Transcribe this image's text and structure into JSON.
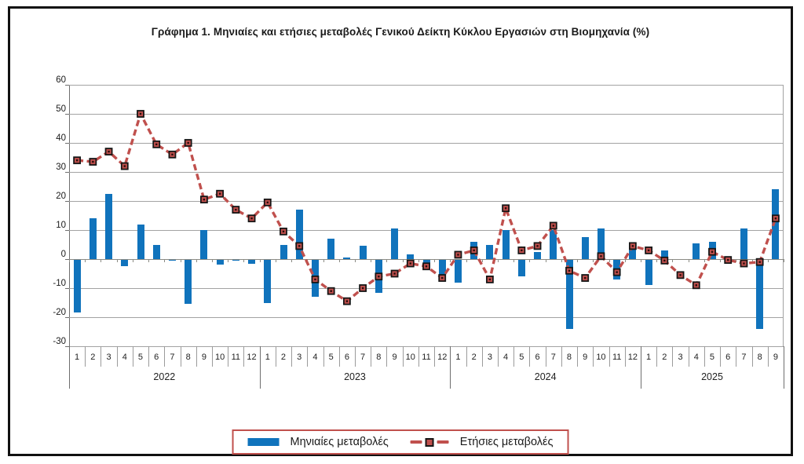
{
  "title": "Γράφημα 1. Μηνιαίες και ετήσιες μεταβολές  Γενικού Δείκτη Κύκλου Εργασιών στη Βιομηχανία (%)",
  "legend": {
    "bar_label": "Μηνιαίες μεταβολές",
    "line_label": "Ετήσιες μεταβολές"
  },
  "colors": {
    "bar": "#1073bc",
    "line": "#c0504d",
    "marker_border": "#161616",
    "legend_border": "#c0504d",
    "gridline": "#a3a3a3"
  },
  "chart_data": {
    "type": "bar+line",
    "title": "Γράφημα 1. Μηνιαίες και ετήσιες μεταβολές  Γενικού Δείκτη Κύκλου Εργασιών στη Βιομηχανία (%)",
    "ylim": [
      -30,
      60
    ],
    "y_ticks": [
      60,
      50,
      40,
      30,
      20,
      10,
      0,
      -10,
      -20,
      -30
    ],
    "grid": true,
    "legend_position": "bottom",
    "years": [
      {
        "label": "2022",
        "months": [
          "1",
          "2",
          "3",
          "4",
          "5",
          "6",
          "7",
          "8",
          "9",
          "10",
          "11",
          "12"
        ]
      },
      {
        "label": "2023",
        "months": [
          "1",
          "2",
          "3",
          "4",
          "5",
          "6",
          "7",
          "8",
          "9",
          "10",
          "11",
          "12"
        ]
      },
      {
        "label": "2024",
        "months": [
          "1",
          "2",
          "3",
          "4",
          "5",
          "6",
          "7",
          "8",
          "9",
          "10",
          "11",
          "12"
        ]
      },
      {
        "label": "2025",
        "months": [
          "1",
          "2",
          "3",
          "4",
          "5",
          "6",
          "7",
          "8",
          "9"
        ]
      }
    ],
    "series": [
      {
        "name": "Μηνιαίες μεταβολές",
        "type": "bar",
        "color": "#1073bc",
        "values": [
          -18.5,
          14,
          22.5,
          -2.5,
          12,
          5,
          -0.5,
          -15.5,
          10,
          -2,
          -0.5,
          -1.5,
          -15,
          5,
          17,
          -13,
          7,
          0.5,
          4.5,
          -11.5,
          10.5,
          1.5,
          -3.5,
          -6.5,
          -8,
          6,
          5,
          10,
          -6,
          2.5,
          10,
          -24,
          7.5,
          10.5,
          -7,
          5,
          -9,
          3,
          0,
          5.5,
          6,
          0,
          10.5,
          -24,
          24
        ]
      },
      {
        "name": "Ετήσιες μεταβολές",
        "type": "line",
        "style": "dashed",
        "marker": "square",
        "color": "#c0504d",
        "values": [
          34,
          33.5,
          37,
          32,
          50,
          39.5,
          36,
          40,
          20.5,
          22.5,
          17,
          14,
          19.5,
          9.5,
          4.5,
          -7,
          -11,
          -14.5,
          -10,
          -6,
          -5,
          -1.5,
          -2.5,
          -6.5,
          1.5,
          3,
          -7,
          17.5,
          3,
          4.5,
          11.5,
          -4,
          -6.5,
          1,
          -4.5,
          4.5,
          3,
          -0.5,
          -5.5,
          -9,
          2.5,
          -0.3,
          -1.5,
          -1,
          14
        ]
      }
    ]
  }
}
